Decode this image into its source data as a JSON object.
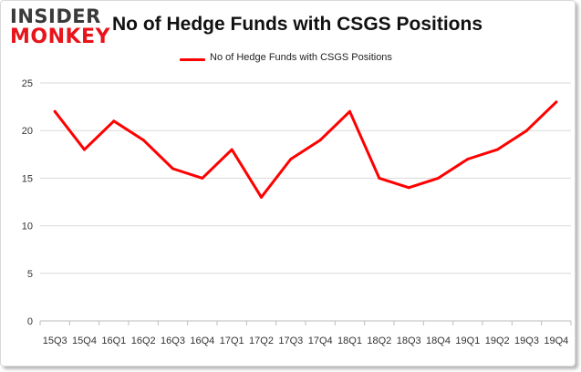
{
  "logo": {
    "top": "INSIDER",
    "bottom": "MONKEY"
  },
  "chart_data": {
    "type": "line",
    "title": "No of Hedge Funds with CSGS Positions",
    "xlabel": "",
    "ylabel": "",
    "categories": [
      "15Q3",
      "15Q4",
      "16Q1",
      "16Q2",
      "16Q3",
      "16Q4",
      "17Q1",
      "17Q2",
      "17Q3",
      "17Q4",
      "18Q1",
      "18Q2",
      "18Q3",
      "18Q4",
      "19Q1",
      "19Q2",
      "19Q3",
      "19Q4"
    ],
    "series": [
      {
        "name": "No of Hedge Funds with CSGS Positions",
        "values": [
          22,
          18,
          21,
          19,
          16,
          15,
          18,
          13,
          17,
          19,
          22,
          15,
          14,
          15,
          17,
          18,
          20,
          23
        ]
      }
    ],
    "ylim": [
      0,
      25
    ],
    "yticks": [
      0,
      5,
      10,
      15,
      20,
      25
    ],
    "grid": true,
    "legend_position": "top-center",
    "line_color": "#ff0000"
  }
}
